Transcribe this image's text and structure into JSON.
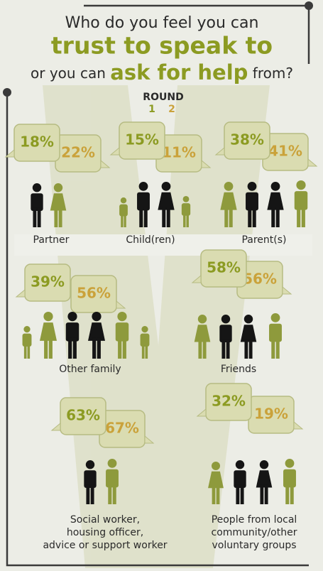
{
  "title": {
    "line1": "Who do you feel you can",
    "line2": "trust to speak to",
    "line3_pre": "or you can",
    "line3_em": "ask for help",
    "line3_post": "from?"
  },
  "legend": {
    "title": "ROUND",
    "round1": "1",
    "round2": "2"
  },
  "groups": [
    {
      "label": [
        "Partner"
      ],
      "round1": "18%",
      "round2": "22%"
    },
    {
      "label": [
        "Child(ren)"
      ],
      "round1": "15%",
      "round2": "11%"
    },
    {
      "label": [
        "Parent(s)"
      ],
      "round1": "38%",
      "round2": "41%"
    },
    {
      "label": [
        "Other family"
      ],
      "round1": "39%",
      "round2": "56%"
    },
    {
      "label": [
        "Friends"
      ],
      "round1": "58%",
      "round2": "56%"
    },
    {
      "label": [
        "Social worker,",
        "housing officer,",
        "advice or support worker"
      ],
      "round1": "63%",
      "round2": "67%"
    },
    {
      "label": [
        "People from local",
        "community/other",
        "voluntary groups"
      ],
      "round1": "32%",
      "round2": "19%"
    }
  ]
}
